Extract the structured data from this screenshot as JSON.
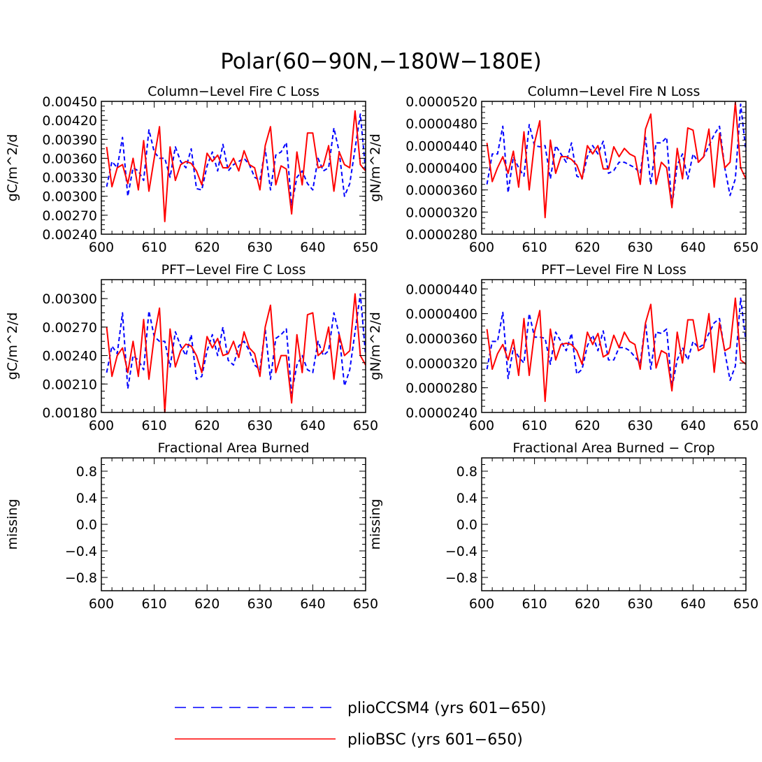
{
  "figure": {
    "title": "Polar(60−90N,−180W−180E)"
  },
  "legend": [
    {
      "name": "plioCCSM4 (yrs 601−650)",
      "color": "#0000ff",
      "dash": "dashed"
    },
    {
      "name": "plioBSC (yrs 601−650)",
      "color": "#ff0000",
      "dash": "solid"
    }
  ],
  "chart_data": [
    {
      "type": "line",
      "title": "Column−Level Fire C Loss",
      "ylabel": "gC/m^2/d",
      "xlim": [
        600,
        650
      ],
      "ylim": [
        0.0024,
        0.0045
      ],
      "xticks": [
        600,
        610,
        620,
        630,
        640,
        650
      ],
      "xtick_labels": [
        "600",
        "610",
        "620",
        "630",
        "640",
        "650"
      ],
      "yticks": [
        0.0024,
        0.0027,
        0.003,
        0.0033,
        0.0036,
        0.0039,
        0.0042,
        0.0045
      ],
      "ytick_labels": [
        "0.00240",
        "0.00270",
        "0.00300",
        "0.00330",
        "0.00360",
        "0.00390",
        "0.00420",
        "0.00450"
      ],
      "x": [
        601,
        602,
        603,
        604,
        605,
        606,
        607,
        608,
        609,
        610,
        611,
        612,
        613,
        614,
        615,
        616,
        617,
        618,
        619,
        620,
        621,
        622,
        623,
        624,
        625,
        626,
        627,
        628,
        629,
        630,
        631,
        632,
        633,
        634,
        635,
        636,
        637,
        638,
        639,
        640,
        641,
        642,
        643,
        644,
        645,
        646,
        647,
        648,
        649,
        650
      ],
      "series": [
        {
          "name": "plioCCSM4",
          "values": [
            0.00315,
            0.00355,
            0.00345,
            0.00393,
            0.003,
            0.00345,
            0.0034,
            0.00325,
            0.00405,
            0.0037,
            0.0036,
            0.0036,
            0.0033,
            0.00378,
            0.00355,
            0.00345,
            0.00375,
            0.00312,
            0.0031,
            0.00348,
            0.0037,
            0.0034,
            0.00382,
            0.0034,
            0.0035,
            0.00355,
            0.0036,
            0.0035,
            0.0033,
            0.00325,
            0.00375,
            0.0031,
            0.00365,
            0.0037,
            0.00385,
            0.00285,
            0.0033,
            0.0034,
            0.0032,
            0.0031,
            0.0036,
            0.0034,
            0.00345,
            0.00408,
            0.0037,
            0.003,
            0.0032,
            0.00375,
            0.0043,
            0.0034
          ]
        },
        {
          "name": "plioBSC",
          "values": [
            0.00378,
            0.00315,
            0.00345,
            0.0035,
            0.0032,
            0.0036,
            0.0031,
            0.00388,
            0.00308,
            0.0036,
            0.0041,
            0.0026,
            0.00378,
            0.00325,
            0.0035,
            0.00355,
            0.00352,
            0.0034,
            0.00318,
            0.00368,
            0.00355,
            0.00365,
            0.00345,
            0.00345,
            0.0036,
            0.0034,
            0.00372,
            0.0035,
            0.00345,
            0.0031,
            0.0038,
            0.0041,
            0.00318,
            0.00348,
            0.00343,
            0.00272,
            0.0037,
            0.00318,
            0.004,
            0.004,
            0.00345,
            0.00348,
            0.0038,
            0.00308,
            0.0037,
            0.0035,
            0.00345,
            0.00435,
            0.0035,
            0.0034
          ]
        }
      ]
    },
    {
      "type": "line",
      "title": "Column−Level Fire N Loss",
      "ylabel": "gN/m^2/d",
      "xlim": [
        600,
        650
      ],
      "ylim": [
        2.8e-05,
        5.2e-05
      ],
      "xticks": [
        600,
        610,
        620,
        630,
        640,
        650
      ],
      "xtick_labels": [
        "600",
        "610",
        "620",
        "630",
        "640",
        "650"
      ],
      "yticks": [
        2.8e-05,
        3.2e-05,
        3.6e-05,
        4e-05,
        4.4e-05,
        4.8e-05,
        5.2e-05
      ],
      "ytick_labels": [
        "0.0000280",
        "0.0000320",
        "0.0000360",
        "0.0000400",
        "0.0000440",
        "0.0000480",
        "0.0000520"
      ],
      "x": [
        601,
        602,
        603,
        604,
        605,
        606,
        607,
        608,
        609,
        610,
        611,
        612,
        613,
        614,
        615,
        616,
        617,
        618,
        619,
        620,
        621,
        622,
        623,
        624,
        625,
        626,
        627,
        628,
        629,
        630,
        631,
        632,
        633,
        634,
        635,
        636,
        637,
        638,
        639,
        640,
        641,
        642,
        643,
        644,
        645,
        646,
        647,
        648,
        649,
        650
      ],
      "series": [
        {
          "name": "plioCCSM4",
          "values": [
            3.7e-05,
            4.25e-05,
            4.25e-05,
            4.75e-05,
            3.55e-05,
            4.2e-05,
            4e-05,
            3.85e-05,
            4.78e-05,
            4.4e-05,
            4.38e-05,
            4.4e-05,
            3.8e-05,
            4.4e-05,
            4.25e-05,
            4.1e-05,
            4.45e-05,
            3.85e-05,
            3.8e-05,
            4.2e-05,
            4.4e-05,
            4.25e-05,
            4.48e-05,
            3.9e-05,
            3.95e-05,
            4.1e-05,
            4.1e-05,
            4.05e-05,
            4e-05,
            3.9e-05,
            4.55e-05,
            3.7e-05,
            4.45e-05,
            4.45e-05,
            4.55e-05,
            3.3e-05,
            4.05e-05,
            4.25e-05,
            3.8e-05,
            4.25e-05,
            4.1e-05,
            4.2e-05,
            4.4e-05,
            4.6e-05,
            4.75e-05,
            4e-05,
            3.5e-05,
            3.8e-05,
            5.15e-05,
            4.3e-05
          ]
        },
        {
          "name": "plioBSC",
          "values": [
            4.45e-05,
            3.75e-05,
            4e-05,
            4.2e-05,
            3.9e-05,
            4.3e-05,
            3.65e-05,
            4.65e-05,
            3.6e-05,
            4.45e-05,
            4.85e-05,
            3.1e-05,
            4.5e-05,
            3.9e-05,
            4.2e-05,
            4.2e-05,
            4.15e-05,
            4.05e-05,
            3.8e-05,
            4.4e-05,
            4.25e-05,
            4.4e-05,
            3.98e-05,
            3.98e-05,
            4.38e-05,
            4.2e-05,
            4.35e-05,
            4.25e-05,
            4.2e-05,
            3.7e-05,
            4.7e-05,
            4.97e-05,
            3.7e-05,
            4.1e-05,
            4e-05,
            3.28e-05,
            4.35e-05,
            3.8e-05,
            4.72e-05,
            4.68e-05,
            4.1e-05,
            4.2e-05,
            4.7e-05,
            3.65e-05,
            4.62e-05,
            4e-05,
            4.1e-05,
            5.18e-05,
            4e-05,
            3.8e-05
          ]
        }
      ]
    },
    {
      "type": "line",
      "title": "PFT−Level Fire C Loss",
      "ylabel": "gC/m^2/d",
      "xlim": [
        600,
        650
      ],
      "ylim": [
        0.0018,
        0.0032
      ],
      "xticks": [
        600,
        610,
        620,
        630,
        640,
        650
      ],
      "xtick_labels": [
        "600",
        "610",
        "620",
        "630",
        "640",
        "650"
      ],
      "yticks": [
        0.0018,
        0.0021,
        0.0024,
        0.0027,
        0.003
      ],
      "ytick_labels": [
        "0.00180",
        "0.00210",
        "0.00240",
        "0.00270",
        "0.00300"
      ],
      "x": [
        601,
        602,
        603,
        604,
        605,
        606,
        607,
        608,
        609,
        610,
        611,
        612,
        613,
        614,
        615,
        616,
        617,
        618,
        619,
        620,
        621,
        622,
        623,
        624,
        625,
        626,
        627,
        628,
        629,
        630,
        631,
        632,
        633,
        634,
        635,
        636,
        637,
        638,
        639,
        640,
        641,
        642,
        643,
        644,
        645,
        646,
        647,
        648,
        649,
        650
      ],
      "series": [
        {
          "name": "plioCCSM4",
          "values": [
            0.00222,
            0.0025,
            0.00242,
            0.00285,
            0.00205,
            0.0024,
            0.00235,
            0.00225,
            0.00287,
            0.0026,
            0.00255,
            0.00255,
            0.00228,
            0.00265,
            0.0025,
            0.0024,
            0.00262,
            0.00215,
            0.00218,
            0.00245,
            0.00262,
            0.0024,
            0.0027,
            0.00235,
            0.0023,
            0.0025,
            0.00255,
            0.00245,
            0.0023,
            0.00225,
            0.00268,
            0.00215,
            0.00258,
            0.00262,
            0.00268,
            0.002,
            0.0023,
            0.0024,
            0.00225,
            0.00222,
            0.00255,
            0.0024,
            0.00245,
            0.00285,
            0.00262,
            0.00208,
            0.00225,
            0.00265,
            0.00305,
            0.0024
          ]
        },
        {
          "name": "plioBSC",
          "values": [
            0.0027,
            0.00218,
            0.0024,
            0.00248,
            0.00222,
            0.00255,
            0.00218,
            0.00278,
            0.00215,
            0.0026,
            0.0029,
            0.0018,
            0.00268,
            0.00228,
            0.00245,
            0.00252,
            0.0025,
            0.0024,
            0.00222,
            0.0026,
            0.00248,
            0.00258,
            0.0024,
            0.00242,
            0.00255,
            0.00238,
            0.00265,
            0.00248,
            0.00242,
            0.00218,
            0.0027,
            0.00293,
            0.00222,
            0.0024,
            0.0024,
            0.0019,
            0.00262,
            0.00222,
            0.00283,
            0.00285,
            0.0024,
            0.00245,
            0.0027,
            0.00215,
            0.00262,
            0.0024,
            0.00245,
            0.00305,
            0.0024,
            0.0023
          ]
        }
      ]
    },
    {
      "type": "line",
      "title": "PFT−Level Fire N Loss",
      "ylabel": "gN/m^2/d",
      "xlim": [
        600,
        650
      ],
      "ylim": [
        2.4e-05,
        4.55e-05
      ],
      "xticks": [
        600,
        610,
        620,
        630,
        640,
        650
      ],
      "xtick_labels": [
        "600",
        "610",
        "620",
        "630",
        "640",
        "650"
      ],
      "yticks": [
        2.4e-05,
        2.8e-05,
        3.2e-05,
        3.6e-05,
        4e-05,
        4.4e-05
      ],
      "ytick_labels": [
        "0.0000240",
        "0.0000280",
        "0.0000320",
        "0.0000360",
        "0.0000400",
        "0.0000440"
      ],
      "x": [
        601,
        602,
        603,
        604,
        605,
        606,
        607,
        608,
        609,
        610,
        611,
        612,
        613,
        614,
        615,
        616,
        617,
        618,
        619,
        620,
        621,
        622,
        623,
        624,
        625,
        626,
        627,
        628,
        629,
        630,
        631,
        632,
        633,
        634,
        635,
        636,
        637,
        638,
        639,
        640,
        641,
        642,
        643,
        644,
        645,
        646,
        647,
        648,
        649,
        650
      ],
      "series": [
        {
          "name": "plioCCSM4",
          "values": [
            3.1e-05,
            3.55e-05,
            3.55e-05,
            4.02e-05,
            2.95e-05,
            3.45e-05,
            3.3e-05,
            3.2e-05,
            4e-05,
            3.62e-05,
            3.62e-05,
            3.6e-05,
            3.18e-05,
            3.7e-05,
            3.55e-05,
            3.4e-05,
            3.68e-05,
            3.02e-05,
            3.1e-05,
            3.48e-05,
            3.65e-05,
            3.4e-05,
            3.72e-05,
            3.25e-05,
            3.25e-05,
            3.45e-05,
            3.45e-05,
            3.4e-05,
            3.3e-05,
            3.2e-05,
            3.85e-05,
            3.1e-05,
            3.7e-05,
            3.68e-05,
            3.75e-05,
            2.8e-05,
            3.25e-05,
            3.45e-05,
            3.25e-05,
            3.55e-05,
            3.45e-05,
            3.5e-05,
            3.68e-05,
            3.85e-05,
            3.92e-05,
            3.38e-05,
            2.92e-05,
            3.15e-05,
            4.25e-05,
            3.55e-05
          ]
        },
        {
          "name": "plioBSC",
          "values": [
            3.75e-05,
            3.1e-05,
            3.35e-05,
            3.5e-05,
            3.25e-05,
            3.58e-05,
            3e-05,
            3.92e-05,
            3e-05,
            3.7e-05,
            4.05e-05,
            2.58e-05,
            3.75e-05,
            3.25e-05,
            3.5e-05,
            3.52e-05,
            3.5e-05,
            3.4e-05,
            3.18e-05,
            3.7e-05,
            3.5e-05,
            3.68e-05,
            3.3e-05,
            3.35e-05,
            3.65e-05,
            3.45e-05,
            3.7e-05,
            3.55e-05,
            3.5e-05,
            3.1e-05,
            3.85e-05,
            4.15e-05,
            3.12e-05,
            3.4e-05,
            3.35e-05,
            2.75e-05,
            3.7e-05,
            3.2e-05,
            3.9e-05,
            3.9e-05,
            3.4e-05,
            3.45e-05,
            4e-05,
            3.05e-05,
            3.85e-05,
            3.4e-05,
            3.45e-05,
            4.25e-05,
            3.25e-05,
            3.18e-05
          ]
        }
      ]
    },
    {
      "type": "line",
      "title": "Fractional Area Burned",
      "ylabel": "missing",
      "xlim": [
        600,
        650
      ],
      "ylim": [
        -1,
        1
      ],
      "xticks": [
        600,
        610,
        620,
        630,
        640,
        650
      ],
      "xtick_labels": [
        "600",
        "610",
        "620",
        "630",
        "640",
        "650"
      ],
      "yticks": [
        0.8,
        0.4,
        0.0,
        -0.4,
        -0.8
      ],
      "ytick_labels": [
        "0.8",
        "0.4",
        "0.0",
        "−0.4",
        "−0.8"
      ],
      "x": [],
      "series": []
    },
    {
      "type": "line",
      "title": "Fractional Area Burned − Crop",
      "ylabel": "missing",
      "xlim": [
        600,
        650
      ],
      "ylim": [
        -1,
        1
      ],
      "xticks": [
        600,
        610,
        620,
        630,
        640,
        650
      ],
      "xtick_labels": [
        "600",
        "610",
        "620",
        "630",
        "640",
        "650"
      ],
      "yticks": [
        0.8,
        0.4,
        0.0,
        -0.4,
        -0.8
      ],
      "ytick_labels": [
        "0.8",
        "0.4",
        "0.0",
        "−0.4",
        "−0.8"
      ],
      "x": [],
      "series": []
    }
  ]
}
